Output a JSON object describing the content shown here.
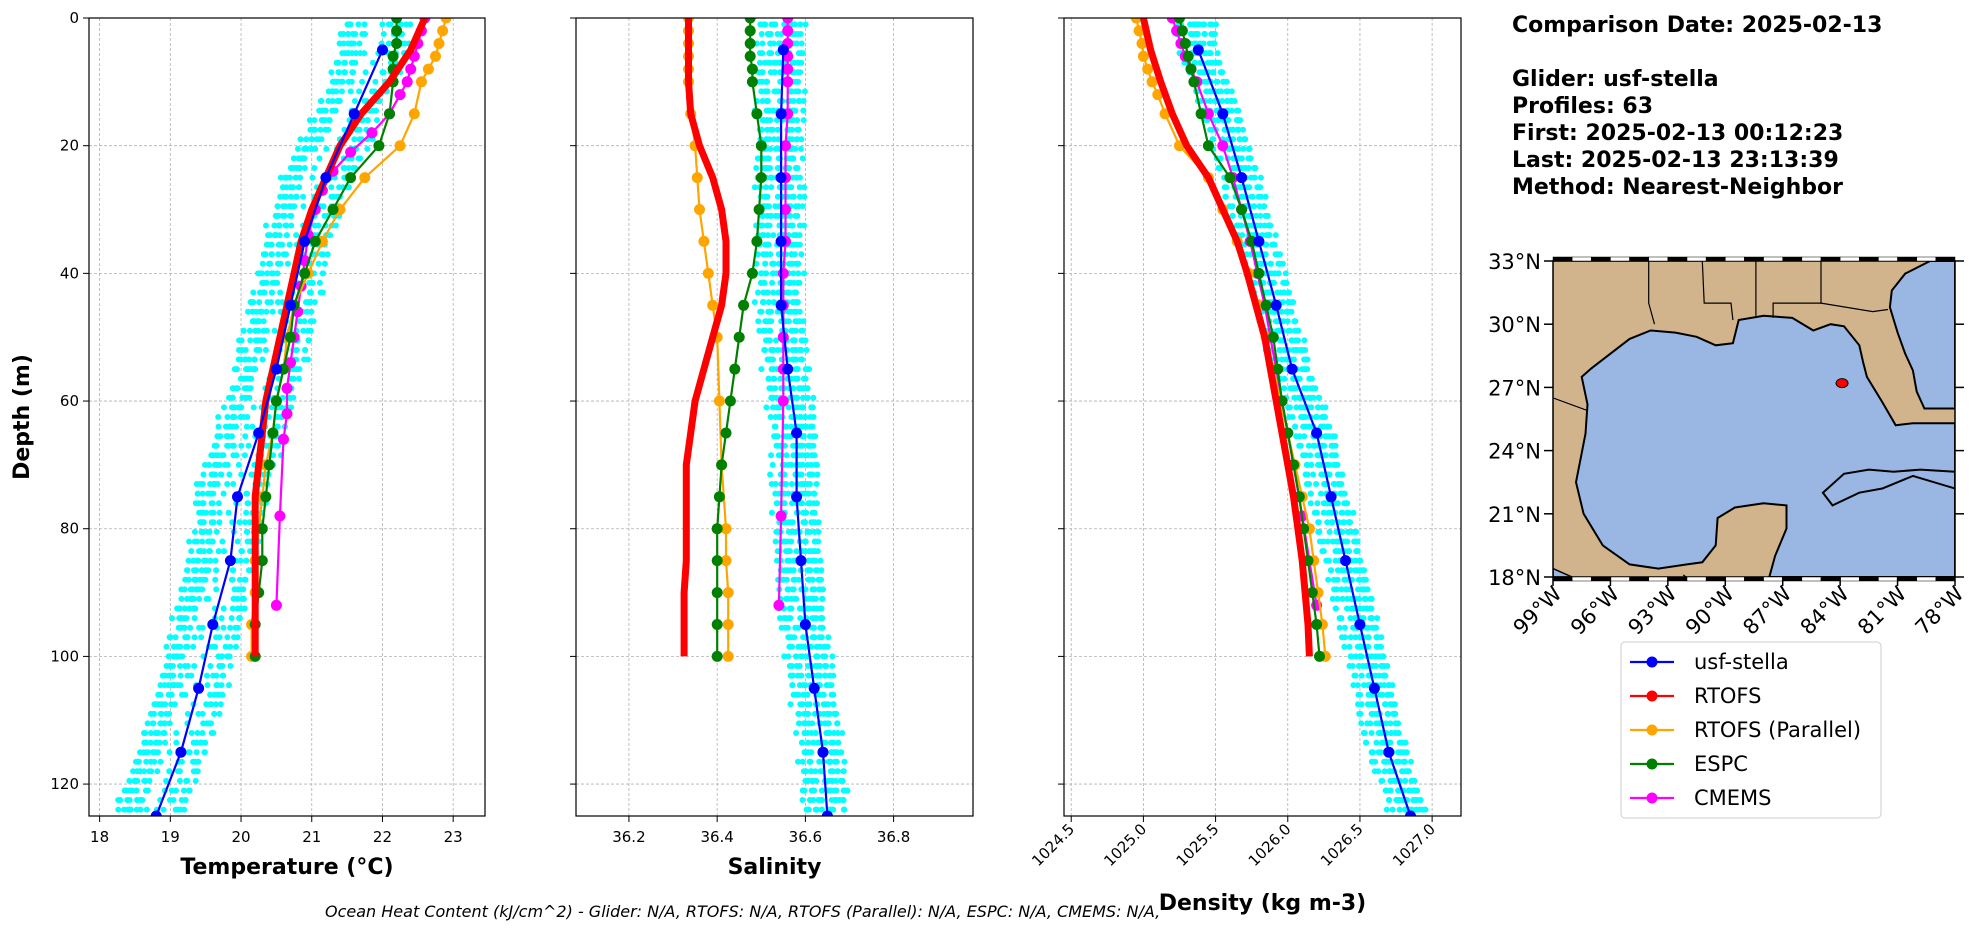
{
  "info": {
    "comparison_date": "Comparison Date: 2025-02-13",
    "glider": "Glider: usf-stella",
    "profiles": "Profiles: 63",
    "first": "First: 2025-02-13 00:12:23",
    "last": "Last: 2025-02-13 23:13:39",
    "method": "Method: Nearest-Neighbor"
  },
  "footer": "Ocean Heat Content (kJ/cm^2) - Glider: N/A,  RTOFS: N/A,  RTOFS (Parallel): N/A,  ESPC: N/A,  CMEMS: N/A,",
  "colors": {
    "scatter": "#00ffff",
    "glider": "#0000ff",
    "rtofs": "#ff0000",
    "rtofs_parallel": "#ffa500",
    "espc": "#008000",
    "cmems": "#ff00ff",
    "land": "#d2b48c",
    "ocean": "#99b7e2"
  },
  "chart_data": [
    {
      "type": "line",
      "xlabel": "Temperature (°C)",
      "ylabel": "Depth (m)",
      "xlim": [
        17.85,
        23.45
      ],
      "ylim": [
        125,
        0
      ],
      "xticks": [
        18,
        19,
        20,
        21,
        22,
        23
      ],
      "yticks": [
        0,
        20,
        40,
        60,
        80,
        100,
        120
      ],
      "grid": true,
      "series": [
        {
          "name": "usf-stella",
          "key": "glider",
          "depth": [
            5,
            15,
            25,
            35,
            45,
            55,
            65,
            75,
            85,
            95,
            105,
            115,
            125
          ],
          "values": [
            22.0,
            21.6,
            21.2,
            20.9,
            20.7,
            20.5,
            20.25,
            19.95,
            19.85,
            19.6,
            19.4,
            19.15,
            18.8
          ]
        },
        {
          "name": "RTOFS",
          "key": "rtofs",
          "depth": [
            0,
            5,
            10,
            15,
            20,
            25,
            30,
            35,
            40,
            45,
            50,
            55,
            60,
            65,
            70,
            75,
            80,
            85,
            90,
            95,
            100
          ],
          "values": [
            22.6,
            22.4,
            22.1,
            21.7,
            21.4,
            21.2,
            21.0,
            20.85,
            20.75,
            20.65,
            20.55,
            20.45,
            20.35,
            20.3,
            20.25,
            20.2,
            20.2,
            20.2,
            20.2,
            20.2,
            20.2
          ]
        },
        {
          "name": "RTOFS (Parallel)",
          "key": "rtofs_parallel",
          "depth": [
            0,
            2,
            4,
            6,
            8,
            10,
            15,
            20,
            25,
            30,
            35,
            40,
            45,
            50,
            55,
            60,
            65,
            70,
            75,
            80,
            85,
            90,
            95,
            100
          ],
          "values": [
            22.9,
            22.85,
            22.8,
            22.75,
            22.65,
            22.55,
            22.45,
            22.25,
            21.75,
            21.4,
            21.15,
            20.95,
            20.75,
            20.65,
            20.6,
            20.5,
            20.45,
            20.35,
            20.3,
            20.25,
            20.2,
            20.2,
            20.15,
            20.15
          ]
        },
        {
          "name": "ESPC",
          "key": "espc",
          "depth": [
            0,
            2,
            4,
            6,
            8,
            10,
            15,
            20,
            25,
            30,
            35,
            40,
            45,
            50,
            55,
            60,
            65,
            70,
            75,
            80,
            85,
            90,
            95,
            100
          ],
          "values": [
            22.2,
            22.2,
            22.2,
            22.15,
            22.15,
            22.15,
            22.1,
            21.95,
            21.55,
            21.3,
            21.05,
            20.9,
            20.75,
            20.7,
            20.6,
            20.5,
            20.45,
            20.4,
            20.35,
            20.3,
            20.3,
            20.25,
            20.2,
            20.2
          ]
        },
        {
          "name": "CMEMS",
          "key": "cmems",
          "depth": [
            0,
            2,
            4,
            6,
            8,
            10,
            12,
            15,
            18,
            21,
            24,
            27,
            30,
            34,
            38,
            42,
            46,
            50,
            54,
            58,
            62,
            66,
            78,
            92
          ],
          "values": [
            22.6,
            22.55,
            22.5,
            22.45,
            22.4,
            22.35,
            22.25,
            22.1,
            21.85,
            21.55,
            21.3,
            21.15,
            21.05,
            20.95,
            20.9,
            20.85,
            20.8,
            20.75,
            20.7,
            20.65,
            20.65,
            20.6,
            20.55,
            20.5
          ]
        }
      ]
    },
    {
      "type": "line",
      "xlabel": "Salinity",
      "ylabel": "",
      "xlim": [
        36.08,
        36.98
      ],
      "ylim": [
        125,
        0
      ],
      "xticks": [
        36.2,
        36.4,
        36.6,
        36.8
      ],
      "yticks": [
        0,
        20,
        40,
        60,
        80,
        100,
        120
      ],
      "grid": true,
      "series": [
        {
          "name": "usf-stella",
          "key": "glider",
          "depth": [
            5,
            15,
            25,
            35,
            45,
            55,
            65,
            75,
            85,
            95,
            105,
            115,
            125
          ],
          "values": [
            36.55,
            36.545,
            36.545,
            36.545,
            36.545,
            36.56,
            36.58,
            36.58,
            36.59,
            36.6,
            36.62,
            36.64,
            36.65
          ]
        },
        {
          "name": "RTOFS",
          "key": "rtofs",
          "depth": [
            0,
            5,
            10,
            15,
            20,
            25,
            30,
            35,
            40,
            45,
            50,
            55,
            60,
            65,
            70,
            75,
            80,
            85,
            90,
            95,
            100
          ],
          "values": [
            36.335,
            36.335,
            36.335,
            36.34,
            36.36,
            36.39,
            36.41,
            36.42,
            36.42,
            36.41,
            36.39,
            36.37,
            36.35,
            36.34,
            36.33,
            36.33,
            36.33,
            36.33,
            36.325,
            36.325,
            36.325
          ]
        },
        {
          "name": "RTOFS (Parallel)",
          "key": "rtofs_parallel",
          "depth": [
            0,
            2,
            4,
            6,
            8,
            10,
            15,
            20,
            25,
            30,
            35,
            40,
            45,
            50,
            60,
            70,
            80,
            85,
            90,
            95,
            100
          ],
          "values": [
            36.335,
            36.335,
            36.335,
            36.335,
            36.335,
            36.335,
            36.34,
            36.35,
            36.355,
            36.36,
            36.37,
            36.38,
            36.39,
            36.4,
            36.405,
            36.41,
            36.42,
            36.42,
            36.425,
            36.425,
            36.425
          ]
        },
        {
          "name": "ESPC",
          "key": "espc",
          "depth": [
            0,
            2,
            4,
            6,
            8,
            10,
            15,
            20,
            25,
            30,
            35,
            40,
            45,
            50,
            55,
            60,
            65,
            70,
            75,
            80,
            85,
            90,
            95,
            100
          ],
          "values": [
            36.475,
            36.475,
            36.475,
            36.475,
            36.48,
            36.48,
            36.49,
            36.5,
            36.5,
            36.495,
            36.49,
            36.48,
            36.46,
            36.45,
            36.44,
            36.43,
            36.42,
            36.41,
            36.405,
            36.4,
            36.4,
            36.4,
            36.4,
            36.4
          ]
        },
        {
          "name": "CMEMS",
          "key": "cmems",
          "depth": [
            0,
            2,
            4,
            6,
            8,
            10,
            15,
            20,
            25,
            30,
            35,
            40,
            45,
            50,
            55,
            60,
            78,
            92
          ],
          "values": [
            36.56,
            36.56,
            36.56,
            36.56,
            36.56,
            36.56,
            36.56,
            36.555,
            36.555,
            36.555,
            36.555,
            36.55,
            36.55,
            36.55,
            36.55,
            36.55,
            36.545,
            36.54
          ]
        }
      ]
    },
    {
      "type": "line",
      "xlabel": "Density (kg m-3)",
      "ylabel": "",
      "xlim": [
        1024.45,
        1027.2
      ],
      "ylim": [
        125,
        0
      ],
      "xticks": [
        1024.5,
        1025.0,
        1025.5,
        1026.0,
        1026.5,
        1027.0
      ],
      "yticks": [
        0,
        20,
        40,
        60,
        80,
        100,
        120
      ],
      "grid": true,
      "series": [
        {
          "name": "usf-stella",
          "key": "glider",
          "depth": [
            5,
            15,
            25,
            35,
            45,
            55,
            65,
            75,
            85,
            95,
            105,
            115,
            125
          ],
          "values": [
            1025.38,
            1025.55,
            1025.68,
            1025.8,
            1025.92,
            1026.03,
            1026.2,
            1026.3,
            1026.4,
            1026.5,
            1026.6,
            1026.7,
            1026.85
          ]
        },
        {
          "name": "RTOFS",
          "key": "rtofs",
          "depth": [
            0,
            5,
            10,
            15,
            20,
            25,
            30,
            35,
            40,
            45,
            50,
            55,
            60,
            65,
            70,
            75,
            80,
            85,
            90,
            95,
            100
          ],
          "values": [
            1025.0,
            1025.05,
            1025.12,
            1025.2,
            1025.3,
            1025.45,
            1025.55,
            1025.65,
            1025.72,
            1025.78,
            1025.84,
            1025.88,
            1025.92,
            1025.96,
            1026.0,
            1026.04,
            1026.07,
            1026.1,
            1026.12,
            1026.14,
            1026.15
          ]
        },
        {
          "name": "RTOFS (Parallel)",
          "key": "rtofs_parallel",
          "depth": [
            0,
            2,
            4,
            6,
            8,
            10,
            12,
            15,
            20,
            25,
            30,
            35,
            40,
            45,
            50,
            55,
            60,
            65,
            70,
            75,
            80,
            85,
            90,
            95,
            100
          ],
          "values": [
            1024.95,
            1024.97,
            1024.99,
            1025.0,
            1025.03,
            1025.06,
            1025.1,
            1025.15,
            1025.25,
            1025.45,
            1025.55,
            1025.65,
            1025.73,
            1025.8,
            1025.85,
            1025.9,
            1025.95,
            1026.0,
            1026.05,
            1026.1,
            1026.15,
            1026.18,
            1026.21,
            1026.24,
            1026.26
          ]
        },
        {
          "name": "ESPC",
          "key": "espc",
          "depth": [
            0,
            2,
            4,
            6,
            8,
            10,
            15,
            20,
            25,
            30,
            35,
            40,
            45,
            50,
            55,
            60,
            65,
            70,
            75,
            80,
            85,
            90,
            95,
            100
          ],
          "values": [
            1025.25,
            1025.27,
            1025.29,
            1025.31,
            1025.33,
            1025.35,
            1025.4,
            1025.45,
            1025.6,
            1025.68,
            1025.75,
            1025.8,
            1025.85,
            1025.9,
            1025.93,
            1025.96,
            1026.0,
            1026.04,
            1026.08,
            1026.11,
            1026.14,
            1026.17,
            1026.2,
            1026.22
          ]
        },
        {
          "name": "CMEMS",
          "key": "cmems",
          "depth": [
            0,
            2,
            4,
            6,
            8,
            10,
            15,
            20,
            25,
            30,
            35,
            40,
            45,
            50,
            55,
            60,
            65,
            70,
            78,
            92
          ],
          "values": [
            1025.2,
            1025.23,
            1025.26,
            1025.29,
            1025.33,
            1025.37,
            1025.45,
            1025.55,
            1025.62,
            1025.68,
            1025.74,
            1025.79,
            1025.84,
            1025.88,
            1025.92,
            1025.96,
            1026.0,
            1026.04,
            1026.1,
            1026.2
          ]
        }
      ]
    }
  ],
  "map": {
    "lon_ticks": [
      "99°W",
      "96°W",
      "93°W",
      "90°W",
      "87°W",
      "84°W",
      "81°W",
      "78°W"
    ],
    "lat_ticks": [
      "33°N",
      "30°N",
      "27°N",
      "24°N",
      "21°N",
      "18°N"
    ],
    "lon_values": [
      -99,
      -96,
      -93,
      -90,
      -87,
      -84,
      -81,
      -78
    ],
    "lat_values": [
      33,
      30,
      27,
      24,
      21,
      18
    ],
    "glider_position": {
      "lon": -83.9,
      "lat": 27.2
    }
  },
  "legend": {
    "items": [
      {
        "label": "usf-stella",
        "key": "glider"
      },
      {
        "label": "RTOFS",
        "key": "rtofs"
      },
      {
        "label": "RTOFS (Parallel)",
        "key": "rtofs_parallel"
      },
      {
        "label": "ESPC",
        "key": "espc"
      },
      {
        "label": "CMEMS",
        "key": "cmems"
      }
    ]
  }
}
